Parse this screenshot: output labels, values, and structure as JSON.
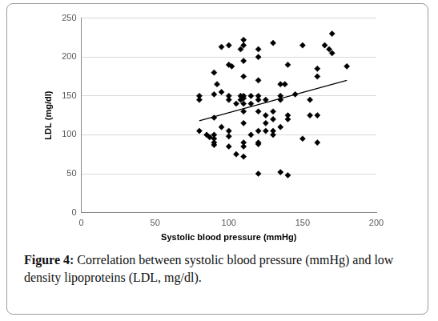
{
  "chart_data": {
    "type": "scatter",
    "caption_label": "Figure 4:",
    "caption": "Correlation between systolic blood pressure (mmHg) and low density lipoproteins (LDL, mg/dl).",
    "x_label": "Systolic blood pressure (mmHg)",
    "y_label": "LDL (mg/dl)",
    "xlim": [
      0,
      200
    ],
    "xticks": [
      0,
      50,
      100,
      150,
      200
    ],
    "ylim": [
      0,
      250
    ],
    "yticks": [
      0,
      50,
      100,
      150,
      200,
      250
    ],
    "grid": "y",
    "series": [
      {
        "type": "scatter",
        "marker": "diamond",
        "color": "#000000",
        "x": [
          80,
          80,
          80,
          85,
          87,
          90,
          90,
          90,
          90,
          90,
          90,
          90,
          92,
          95,
          95,
          95,
          100,
          100,
          100,
          100,
          100,
          100,
          100,
          102,
          105,
          105,
          108,
          108,
          108,
          110,
          110,
          110,
          110,
          110,
          110,
          110,
          110,
          110,
          110,
          110,
          110,
          115,
          115,
          115,
          120,
          120,
          120,
          120,
          120,
          120,
          120,
          120,
          120,
          120,
          125,
          125,
          125,
          125,
          130,
          130,
          130,
          130,
          130,
          135,
          135,
          135,
          135,
          135,
          138,
          140,
          140,
          140,
          140,
          145,
          150,
          150,
          155,
          155,
          160,
          160,
          160,
          160,
          165,
          168,
          170,
          170,
          180
        ],
        "values": [
          150,
          145,
          105,
          100,
          97,
          100,
          95,
          90,
          87,
          122,
          152,
          180,
          165,
          213,
          155,
          110,
          215,
          190,
          150,
          145,
          105,
          98,
          85,
          188,
          140,
          75,
          210,
          150,
          145,
          222,
          215,
          195,
          175,
          150,
          147,
          140,
          130,
          115,
          90,
          85,
          72,
          150,
          140,
          100,
          210,
          200,
          170,
          150,
          145,
          130,
          105,
          90,
          88,
          50,
          145,
          125,
          115,
          105,
          218,
          130,
          120,
          105,
          100,
          165,
          150,
          145,
          110,
          52,
          165,
          190,
          125,
          120,
          48,
          152,
          215,
          95,
          145,
          125,
          185,
          175,
          125,
          90,
          215,
          210,
          230,
          205,
          188
        ]
      },
      {
        "type": "line",
        "line_style": "solid",
        "color": "#000000",
        "x": [
          80,
          180
        ],
        "values": [
          118,
          170
        ]
      }
    ]
  }
}
